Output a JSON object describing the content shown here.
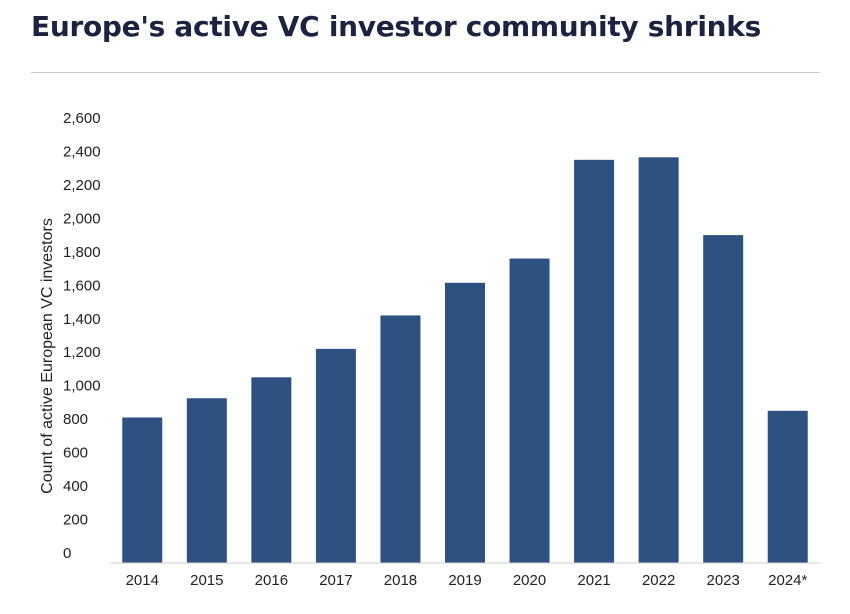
{
  "title": "Europe's active VC investor community shrinks",
  "chart_data": {
    "type": "bar",
    "title": "Europe's active VC investor community shrinks",
    "xlabel": "",
    "ylabel": "Count of active European VC investors",
    "categories": [
      "2014",
      "2015",
      "2016",
      "2017",
      "2018",
      "2019",
      "2020",
      "2021",
      "2022",
      "2023",
      "2024*"
    ],
    "values": [
      810,
      925,
      1050,
      1220,
      1420,
      1615,
      1760,
      2350,
      2365,
      1900,
      850
    ],
    "ylim": [
      0,
      2600
    ],
    "yticks": [
      0,
      200,
      400,
      600,
      800,
      1000,
      1200,
      1400,
      1600,
      1800,
      2000,
      2200,
      2400,
      2600
    ],
    "ytick_labels": [
      "0",
      "200",
      "400",
      "600",
      "800",
      "1,000",
      "1,200",
      "1,400",
      "1,600",
      "1,800",
      "2,000",
      "2,200",
      "2,400",
      "2,600"
    ],
    "grid": false,
    "legend": "none",
    "bar_color": "#2d5282"
  }
}
